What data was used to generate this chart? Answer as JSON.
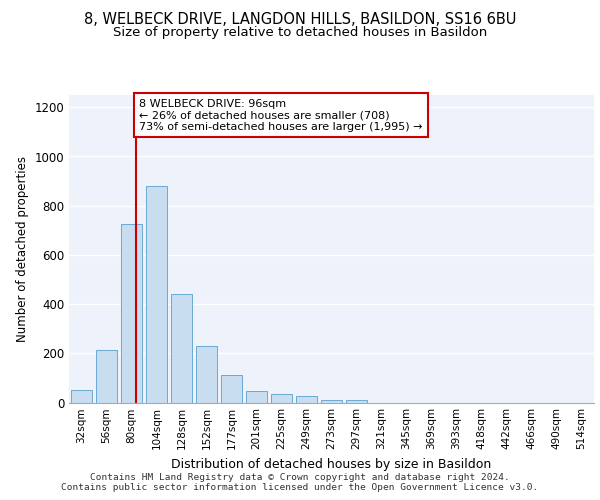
{
  "title1": "8, WELBECK DRIVE, LANGDON HILLS, BASILDON, SS16 6BU",
  "title2": "Size of property relative to detached houses in Basildon",
  "xlabel": "Distribution of detached houses by size in Basildon",
  "ylabel": "Number of detached properties",
  "categories": [
    "32sqm",
    "56sqm",
    "80sqm",
    "104sqm",
    "128sqm",
    "152sqm",
    "177sqm",
    "201sqm",
    "225sqm",
    "249sqm",
    "273sqm",
    "297sqm",
    "321sqm",
    "345sqm",
    "369sqm",
    "393sqm",
    "418sqm",
    "442sqm",
    "466sqm",
    "490sqm",
    "514sqm"
  ],
  "values": [
    50,
    215,
    725,
    880,
    440,
    230,
    110,
    47,
    35,
    25,
    12,
    12,
    0,
    0,
    0,
    0,
    0,
    0,
    0,
    0,
    0
  ],
  "bar_color": "#c9ddf0",
  "bar_edge_color": "#6aaad4",
  "vline_color": "#cc0000",
  "annotation_text": "8 WELBECK DRIVE: 96sqm\n← 26% of detached houses are smaller (708)\n73% of semi-detached houses are larger (1,995) →",
  "annotation_box_color": "#cc0000",
  "ylim": [
    0,
    1250
  ],
  "yticks": [
    0,
    200,
    400,
    600,
    800,
    1000,
    1200
  ],
  "footer1": "Contains HM Land Registry data © Crown copyright and database right 2024.",
  "footer2": "Contains public sector information licensed under the Open Government Licence v3.0.",
  "bg_color": "#eef2fb",
  "grid_color": "#ffffff",
  "title1_fontsize": 10.5,
  "title2_fontsize": 9.5,
  "bar_width": 0.85,
  "ann_fontsize": 8.0,
  "footer_fontsize": 6.8,
  "ylabel_fontsize": 8.5,
  "xlabel_fontsize": 9.0,
  "ytick_fontsize": 8.5,
  "xtick_fontsize": 7.5
}
